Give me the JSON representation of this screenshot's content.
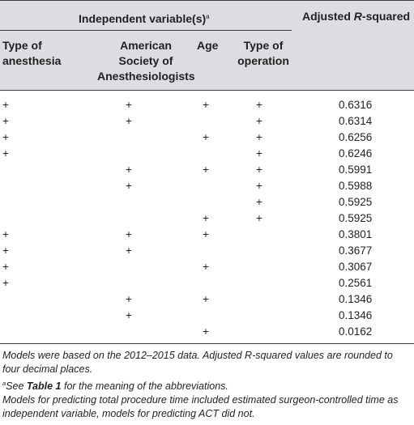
{
  "header": {
    "group_title": "Independent variable(s)",
    "group_footnote_mark": "a",
    "adjusted_title_prefix": "Adjusted ",
    "adjusted_title_italic": "R",
    "adjusted_title_suffix": "-squared",
    "columns": {
      "anesthesia": [
        "Type of",
        "anesthesia"
      ],
      "asa": [
        "American",
        "Society of",
        "Anesthesiologists"
      ],
      "age": "Age",
      "operation": [
        "Type of",
        "operation"
      ]
    }
  },
  "rows": [
    {
      "anesthesia": "+",
      "asa": "+",
      "age": "+",
      "operation": "+",
      "value": "0.6316"
    },
    {
      "anesthesia": "+",
      "asa": "+",
      "age": "",
      "operation": "+",
      "value": "0.6314"
    },
    {
      "anesthesia": "+",
      "asa": "",
      "age": "+",
      "operation": "+",
      "value": "0.6256"
    },
    {
      "anesthesia": "+",
      "asa": "",
      "age": "",
      "operation": "+",
      "value": "0.6246"
    },
    {
      "anesthesia": "",
      "asa": "+",
      "age": "+",
      "operation": "+",
      "value": "0.5991"
    },
    {
      "anesthesia": "",
      "asa": "+",
      "age": "",
      "operation": "+",
      "value": "0.5988"
    },
    {
      "anesthesia": "",
      "asa": "",
      "age": "",
      "operation": "+",
      "value": "0.5925"
    },
    {
      "anesthesia": "",
      "asa": "",
      "age": "+",
      "operation": "+",
      "value": "0.5925"
    },
    {
      "anesthesia": "+",
      "asa": "+",
      "age": "+",
      "operation": "",
      "value": "0.3801"
    },
    {
      "anesthesia": "+",
      "asa": "+",
      "age": "",
      "operation": "",
      "value": "0.3677"
    },
    {
      "anesthesia": "+",
      "asa": "",
      "age": "+",
      "operation": "",
      "value": "0.3067"
    },
    {
      "anesthesia": "+",
      "asa": "",
      "age": "",
      "operation": "",
      "value": "0.2561"
    },
    {
      "anesthesia": "",
      "asa": "+",
      "age": "+",
      "operation": "",
      "value": "0.1346"
    },
    {
      "anesthesia": "",
      "asa": "+",
      "age": "",
      "operation": "",
      "value": "0.1346"
    },
    {
      "anesthesia": "",
      "asa": "",
      "age": "+",
      "operation": "",
      "value": "0.0162"
    }
  ],
  "notes": {
    "note1": "Models were based on the 2012–2015 data. Adjusted R-squared values are rounded to four decimal places.",
    "note2_mark": "a",
    "note2_prefix": "See ",
    "note2_bold": "Table 1",
    "note2_suffix": " for the meaning of the abbreviations.",
    "note3": "Models for predicting total procedure time included estimated surgeon-controlled time as independent variable, models for predicting ACT did not."
  }
}
